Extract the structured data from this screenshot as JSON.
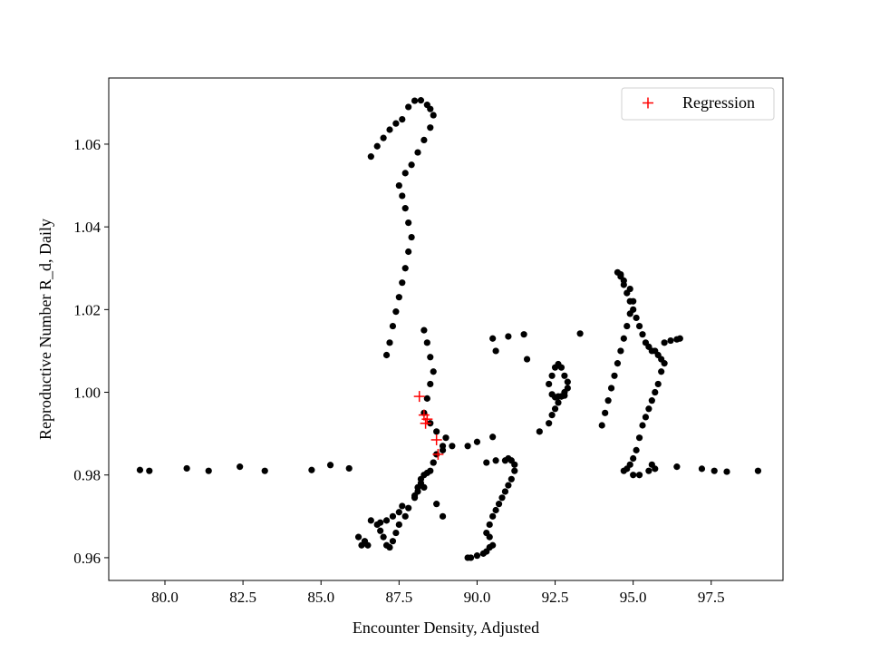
{
  "chart_data": {
    "type": "scatter",
    "title": "",
    "xlabel": "Encounter Density, Adjusted",
    "ylabel": "Reproductive Number R_d, Daily",
    "xlim": [
      78.2,
      99.8
    ],
    "ylim": [
      0.9545,
      1.076
    ],
    "xticks": [
      "80.0",
      "82.5",
      "85.0",
      "87.5",
      "90.0",
      "92.5",
      "95.0",
      "97.5"
    ],
    "yticks": [
      "0.96",
      "0.98",
      "1.00",
      "1.02",
      "1.04",
      "1.06"
    ],
    "grid": false,
    "legend_position": "top-right",
    "colors": {
      "observed": "#000000",
      "regression": "#ff0000",
      "axes": "#000000"
    },
    "series": [
      {
        "marker": "dot",
        "x": [
          79.2,
          79.5,
          80.7,
          81.4,
          82.4,
          83.2,
          84.7,
          85.3,
          85.9,
          86.6,
          86.8,
          87.0,
          87.2,
          87.4,
          87.6,
          87.8,
          88.0,
          88.2,
          88.4,
          88.5,
          88.6,
          88.5,
          88.3,
          88.1,
          87.9,
          87.7,
          87.5,
          87.6,
          87.7,
          87.8,
          87.9,
          87.8,
          87.7,
          87.6,
          87.5,
          87.4,
          87.3,
          87.2,
          87.1,
          88.3,
          88.4,
          88.5,
          88.6,
          88.5,
          88.4,
          88.3,
          88.5,
          88.7,
          88.9,
          88.6,
          88.4,
          88.2,
          88.0,
          87.8,
          87.7,
          87.5,
          87.4,
          87.3,
          87.2,
          87.1,
          87.0,
          86.9,
          86.8,
          86.6,
          86.4,
          86.2,
          86.3,
          86.5,
          86.9,
          87.1,
          87.3,
          87.5,
          87.6,
          88.0,
          88.1,
          88.2,
          88.3,
          88.5,
          88.6,
          88.7,
          88.9,
          89.0,
          89.2,
          88.1,
          88.3,
          88.7,
          88.9,
          89.7,
          89.8,
          90.0,
          90.2,
          90.3,
          90.4,
          90.5,
          90.4,
          90.3,
          90.4,
          90.5,
          90.6,
          90.7,
          90.8,
          90.9,
          91.0,
          91.1,
          91.2,
          91.2,
          91.1,
          91.0,
          90.9,
          90.6,
          90.3,
          89.7,
          90.0,
          90.5,
          90.6,
          90.5,
          91.0,
          91.5,
          91.6,
          92.0,
          92.3,
          92.4,
          92.5,
          92.6,
          92.7,
          92.8,
          92.9,
          92.9,
          92.8,
          92.7,
          92.6,
          92.5,
          92.4,
          92.3,
          92.4,
          92.5,
          92.6,
          92.7,
          92.8,
          93.3,
          94.0,
          94.1,
          94.2,
          94.3,
          94.4,
          94.5,
          94.6,
          94.7,
          94.8,
          94.9,
          95.0,
          94.9,
          94.7,
          94.6,
          94.5,
          94.6,
          94.7,
          94.8,
          94.9,
          95.0,
          95.1,
          95.2,
          95.3,
          95.4,
          95.5,
          95.6,
          95.7,
          95.8,
          95.9,
          96.0,
          95.9,
          95.8,
          95.7,
          95.6,
          95.5,
          95.4,
          95.3,
          95.2,
          95.1,
          95.0,
          94.9,
          94.8,
          94.7,
          95.0,
          95.2,
          95.5,
          95.7,
          96.0,
          96.2,
          96.4,
          96.5,
          95.6,
          96.4,
          97.2,
          97.6,
          98.0,
          99.0
        ],
        "y": [
          0.9812,
          0.981,
          0.9816,
          0.981,
          0.982,
          0.981,
          0.9812,
          0.9824,
          0.9816,
          1.057,
          1.0595,
          1.0615,
          1.0635,
          1.065,
          1.066,
          1.069,
          1.0705,
          1.0706,
          1.0695,
          1.0685,
          1.067,
          1.064,
          1.061,
          1.058,
          1.055,
          1.053,
          1.05,
          1.0475,
          1.0445,
          1.041,
          1.0375,
          1.034,
          1.03,
          1.0265,
          1.023,
          1.0195,
          1.016,
          1.012,
          1.009,
          1.015,
          1.012,
          1.0085,
          1.005,
          1.002,
          0.9985,
          0.995,
          0.9925,
          0.9905,
          0.986,
          0.983,
          0.9805,
          0.978,
          0.975,
          0.972,
          0.97,
          0.968,
          0.966,
          0.964,
          0.9625,
          0.963,
          0.965,
          0.9665,
          0.968,
          0.969,
          0.964,
          0.965,
          0.963,
          0.963,
          0.9685,
          0.969,
          0.97,
          0.971,
          0.9725,
          0.9745,
          0.977,
          0.979,
          0.98,
          0.981,
          0.983,
          0.985,
          0.987,
          0.989,
          0.987,
          0.976,
          0.977,
          0.973,
          0.97,
          0.96,
          0.96,
          0.9605,
          0.961,
          0.9615,
          0.9625,
          0.963,
          0.965,
          0.966,
          0.968,
          0.97,
          0.9715,
          0.973,
          0.9745,
          0.976,
          0.9775,
          0.979,
          0.981,
          0.9825,
          0.9835,
          0.984,
          0.9835,
          0.9835,
          0.983,
          0.987,
          0.988,
          0.9892,
          1.01,
          1.013,
          1.0135,
          1.014,
          1.008,
          0.9905,
          0.9925,
          0.9945,
          0.996,
          0.9975,
          0.999,
          1.0,
          1.001,
          1.0025,
          1.004,
          1.006,
          1.0068,
          1.006,
          1.004,
          1.002,
          0.9995,
          0.9988,
          0.999,
          0.999,
          0.9992,
          1.0142,
          0.992,
          0.995,
          0.998,
          1.001,
          1.004,
          1.007,
          1.01,
          1.013,
          1.016,
          1.019,
          1.022,
          1.025,
          1.027,
          1.0285,
          1.029,
          1.028,
          1.026,
          1.024,
          1.022,
          1.02,
          1.018,
          1.016,
          1.014,
          1.012,
          1.011,
          1.01,
          1.01,
          1.009,
          1.008,
          1.007,
          1.005,
          1.002,
          1.0,
          0.998,
          0.996,
          0.994,
          0.992,
          0.989,
          0.986,
          0.984,
          0.9825,
          0.9815,
          0.981,
          0.98,
          0.98,
          0.981,
          0.9815,
          1.012,
          1.0125,
          1.0128,
          1.013,
          0.9825,
          0.982,
          0.9815,
          0.981,
          0.9808,
          0.981
        ]
      },
      {
        "name": "Regression",
        "marker": "plus",
        "x": [
          88.15,
          88.3,
          88.4,
          88.35,
          88.7,
          88.75
        ],
        "y": [
          0.999,
          0.9945,
          0.9935,
          0.9925,
          0.9885,
          0.985
        ]
      }
    ]
  }
}
